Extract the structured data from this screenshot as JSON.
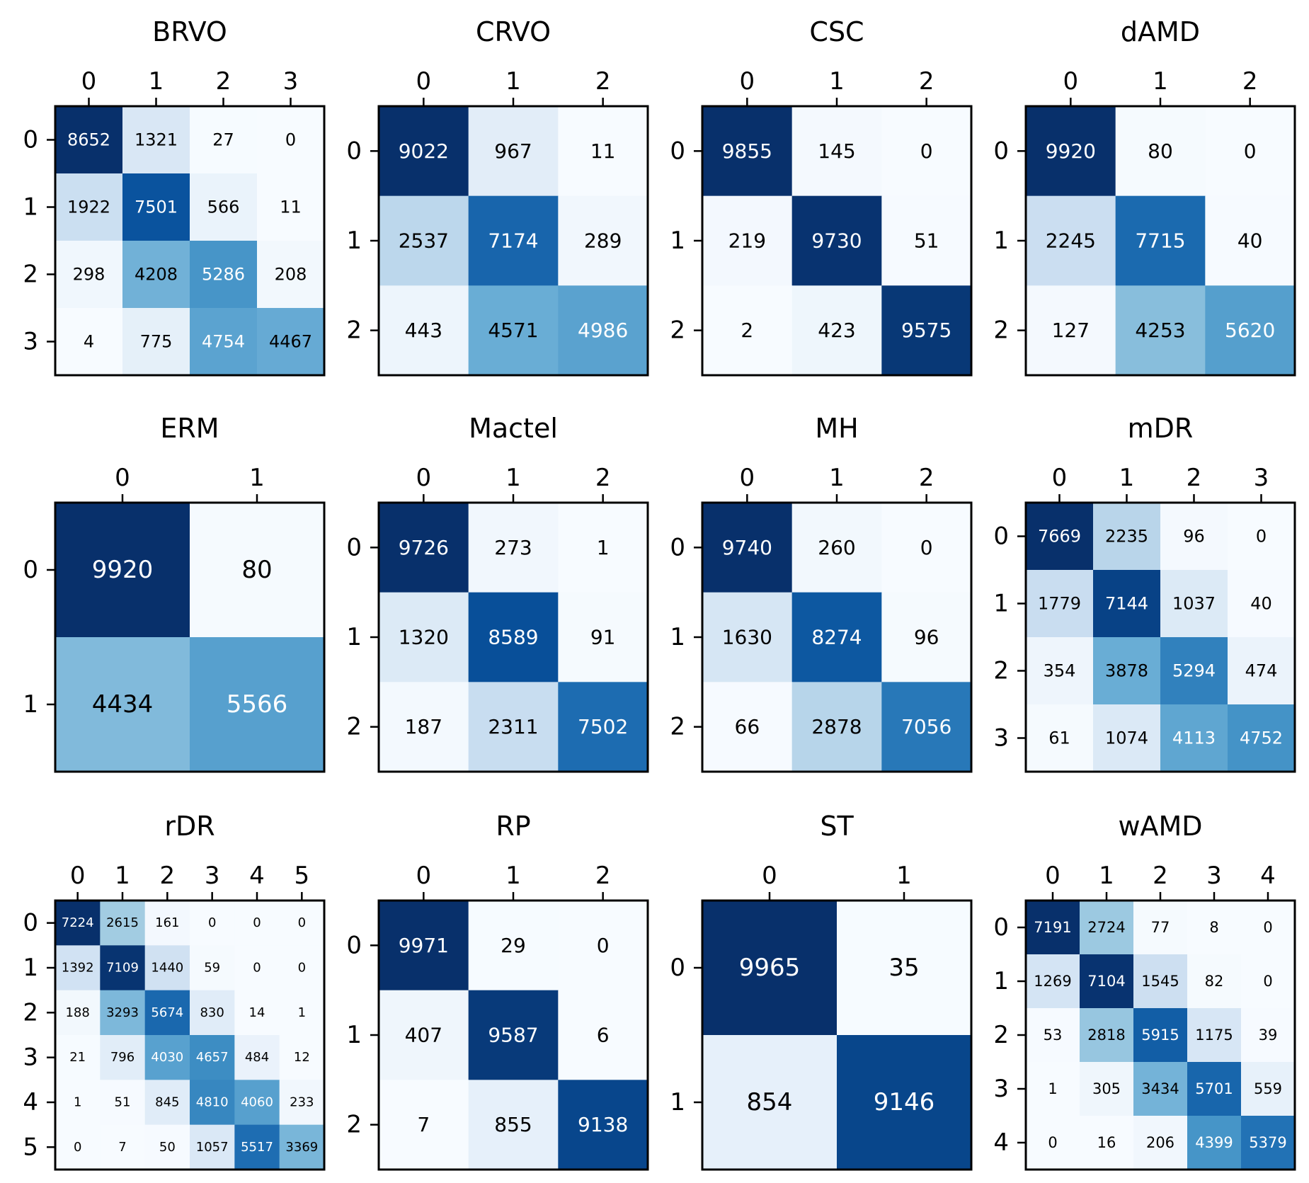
{
  "chart_data": [
    {
      "type": "heatmap",
      "title": "BRVO",
      "x_tick_labels": [
        "0",
        "1",
        "2",
        "3"
      ],
      "y_tick_labels": [
        "0",
        "1",
        "2",
        "3"
      ],
      "colormap": "Blues",
      "matrix": [
        [
          8652,
          1321,
          27,
          0
        ],
        [
          1922,
          7501,
          566,
          11
        ],
        [
          298,
          4208,
          5286,
          208
        ],
        [
          4,
          775,
          4754,
          4467
        ]
      ]
    },
    {
      "type": "heatmap",
      "title": "CRVO",
      "x_tick_labels": [
        "0",
        "1",
        "2"
      ],
      "y_tick_labels": [
        "0",
        "1",
        "2"
      ],
      "colormap": "Blues",
      "matrix": [
        [
          9022,
          967,
          11
        ],
        [
          2537,
          7174,
          289
        ],
        [
          443,
          4571,
          4986
        ]
      ]
    },
    {
      "type": "heatmap",
      "title": "CSC",
      "x_tick_labels": [
        "0",
        "1",
        "2"
      ],
      "y_tick_labels": [
        "0",
        "1",
        "2"
      ],
      "colormap": "Blues",
      "matrix": [
        [
          9855,
          145,
          0
        ],
        [
          219,
          9730,
          51
        ],
        [
          2,
          423,
          9575
        ]
      ]
    },
    {
      "type": "heatmap",
      "title": "dAMD",
      "x_tick_labels": [
        "0",
        "1",
        "2"
      ],
      "y_tick_labels": [
        "0",
        "1",
        "2"
      ],
      "colormap": "Blues",
      "matrix": [
        [
          9920,
          80,
          0
        ],
        [
          2245,
          7715,
          40
        ],
        [
          127,
          4253,
          5620
        ]
      ]
    },
    {
      "type": "heatmap",
      "title": "ERM",
      "x_tick_labels": [
        "0",
        "1"
      ],
      "y_tick_labels": [
        "0",
        "1"
      ],
      "colormap": "Blues",
      "matrix": [
        [
          9920,
          80
        ],
        [
          4434,
          5566
        ]
      ]
    },
    {
      "type": "heatmap",
      "title": "Mactel",
      "x_tick_labels": [
        "0",
        "1",
        "2"
      ],
      "y_tick_labels": [
        "0",
        "1",
        "2"
      ],
      "colormap": "Blues",
      "matrix": [
        [
          9726,
          273,
          1
        ],
        [
          1320,
          8589,
          91
        ],
        [
          187,
          2311,
          7502
        ]
      ]
    },
    {
      "type": "heatmap",
      "title": "MH",
      "x_tick_labels": [
        "0",
        "1",
        "2"
      ],
      "y_tick_labels": [
        "0",
        "1",
        "2"
      ],
      "colormap": "Blues",
      "matrix": [
        [
          9740,
          260,
          0
        ],
        [
          1630,
          8274,
          96
        ],
        [
          66,
          2878,
          7056
        ]
      ]
    },
    {
      "type": "heatmap",
      "title": "mDR",
      "x_tick_labels": [
        "0",
        "1",
        "2",
        "3"
      ],
      "y_tick_labels": [
        "0",
        "1",
        "2",
        "3"
      ],
      "colormap": "Blues",
      "matrix": [
        [
          7669,
          2235,
          96,
          0
        ],
        [
          1779,
          7144,
          1037,
          40
        ],
        [
          354,
          3878,
          5294,
          474
        ],
        [
          61,
          1074,
          4113,
          4752
        ]
      ]
    },
    {
      "type": "heatmap",
      "title": "rDR",
      "x_tick_labels": [
        "0",
        "1",
        "2",
        "3",
        "4",
        "5"
      ],
      "y_tick_labels": [
        "0",
        "1",
        "2",
        "3",
        "4",
        "5"
      ],
      "colormap": "Blues",
      "matrix": [
        [
          7224,
          2615,
          161,
          0,
          0,
          0
        ],
        [
          1392,
          7109,
          1440,
          59,
          0,
          0
        ],
        [
          188,
          3293,
          5674,
          830,
          14,
          1
        ],
        [
          21,
          796,
          4030,
          4657,
          484,
          12
        ],
        [
          1,
          51,
          845,
          4810,
          4060,
          233
        ],
        [
          0,
          7,
          50,
          1057,
          5517,
          3369
        ]
      ]
    },
    {
      "type": "heatmap",
      "title": "RP",
      "x_tick_labels": [
        "0",
        "1",
        "2"
      ],
      "y_tick_labels": [
        "0",
        "1",
        "2"
      ],
      "colormap": "Blues",
      "matrix": [
        [
          9971,
          29,
          0
        ],
        [
          407,
          9587,
          6
        ],
        [
          7,
          855,
          9138
        ]
      ]
    },
    {
      "type": "heatmap",
      "title": "ST",
      "x_tick_labels": [
        "0",
        "1"
      ],
      "y_tick_labels": [
        "0",
        "1"
      ],
      "colormap": "Blues",
      "matrix": [
        [
          9965,
          35
        ],
        [
          854,
          9146
        ]
      ]
    },
    {
      "type": "heatmap",
      "title": "wAMD",
      "x_tick_labels": [
        "0",
        "1",
        "2",
        "3",
        "4"
      ],
      "y_tick_labels": [
        "0",
        "1",
        "2",
        "3",
        "4"
      ],
      "colormap": "Blues",
      "matrix": [
        [
          7191,
          2724,
          77,
          8,
          0
        ],
        [
          1269,
          7104,
          1545,
          82,
          0
        ],
        [
          53,
          2818,
          5915,
          1175,
          39
        ],
        [
          1,
          305,
          3434,
          5701,
          559
        ],
        [
          0,
          16,
          206,
          4399,
          5379
        ]
      ]
    }
  ]
}
